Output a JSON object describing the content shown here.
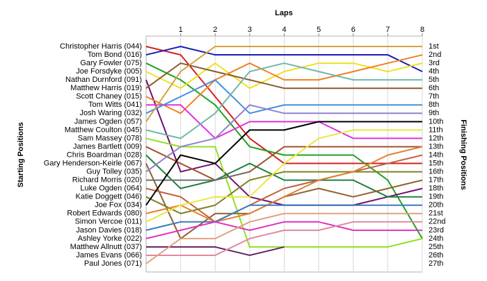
{
  "chart_data": {
    "type": "line",
    "title": "Laps",
    "y_label": "Starting Positions",
    "y2_label": "Finishing Positions",
    "x": [
      0,
      1,
      2,
      3,
      4,
      5,
      6,
      7,
      8
    ],
    "xlim": [
      0,
      8
    ],
    "xticks": [
      1,
      2,
      3,
      4,
      5,
      6,
      7,
      8
    ],
    "ylim": [
      1,
      27
    ],
    "y_inverted": true,
    "grid": true,
    "finishing_labels": [
      "1st",
      "2nd",
      "3rd",
      "4th",
      "5th",
      "6th",
      "7th",
      "8th",
      "9th",
      "10th",
      "11th",
      "12th",
      "13th",
      "14th",
      "15th",
      "16th",
      "17th",
      "18th",
      "19th",
      "20th",
      "21st",
      "22nd",
      "23rd",
      "24th",
      "25th",
      "26th",
      "27th"
    ],
    "series": [
      {
        "name": "Christopher Harris (044)",
        "color": "#d42020",
        "values": [
          1,
          2,
          7,
          12,
          15,
          15,
          15,
          15,
          15
        ]
      },
      {
        "name": "Tom Bond (016)",
        "color": "#1a1ab8",
        "values": [
          2,
          1,
          2,
          2,
          2,
          2,
          2,
          2,
          4
        ]
      },
      {
        "name": "Gary Fowler (075)",
        "color": "#20a020",
        "values": [
          3,
          5,
          8,
          13,
          14,
          14,
          14,
          17,
          24
        ]
      },
      {
        "name": "Joe Forsdyke (005)",
        "color": "#f0e020",
        "values": [
          4,
          6,
          3,
          6,
          4,
          3,
          3,
          4,
          3
        ]
      },
      {
        "name": "Nathan Durnford (091)",
        "color": "#701070",
        "values": [
          5,
          16,
          15,
          19,
          20,
          20,
          20,
          19,
          18
        ]
      },
      {
        "name": "Matthew Harris (019)",
        "color": "#8b5a2b",
        "values": [
          6,
          3,
          4,
          5,
          6,
          6,
          6,
          6,
          6
        ]
      },
      {
        "name": "Scott Chaney (015)",
        "color": "#f08020",
        "values": [
          7,
          9,
          5,
          3,
          5,
          5,
          4,
          3,
          2
        ]
      },
      {
        "name": "Tom Witts (041)",
        "color": "#e030e0",
        "values": [
          8,
          8,
          12,
          10,
          10,
          10,
          12,
          12,
          12
        ]
      },
      {
        "name": "Josh Waring (032)",
        "color": "#4090e0",
        "values": [
          9,
          7,
          5,
          9,
          8,
          8,
          8,
          8,
          8
        ]
      },
      {
        "name": "James Ogden (057)",
        "color": "#d4a040",
        "values": [
          10,
          4,
          1,
          1,
          1,
          1,
          1,
          1,
          1
        ]
      },
      {
        "name": "Matthew Coulton (045)",
        "color": "#70b8a8",
        "values": [
          11,
          12,
          9,
          4,
          3,
          4,
          5,
          5,
          5
        ]
      },
      {
        "name": "Sam Massey (078)",
        "color": "#90e020",
        "values": [
          12,
          13,
          13,
          25,
          25,
          25,
          25,
          25,
          24
        ]
      },
      {
        "name": "James Bartlett (009)",
        "color": "#a0522d",
        "values": [
          13,
          15,
          17,
          16,
          13,
          13,
          13,
          13,
          13
        ]
      },
      {
        "name": "Chris Boardman (028)",
        "color": "#208040",
        "values": [
          14,
          18,
          17,
          15,
          17,
          17,
          17,
          19,
          19
        ]
      },
      {
        "name": "Gary Henderson-Keirle (067)",
        "color": "#906030",
        "values": [
          15,
          24,
          21,
          21,
          19,
          18,
          19,
          18,
          17
        ]
      },
      {
        "name": "Guy Tolley (035)",
        "color": "#9080d0",
        "values": [
          16,
          13,
          12,
          8,
          9,
          9,
          9,
          9,
          9
        ]
      },
      {
        "name": "Richard Morris (020)",
        "color": "#707070",
        "values": [
          17,
          17,
          17,
          16,
          null,
          null,
          null,
          null,
          null
        ]
      },
      {
        "name": "Luke Ogden (064)",
        "color": "#c06040",
        "values": [
          18,
          19,
          22,
          20,
          18,
          17,
          16,
          15,
          14
        ]
      },
      {
        "name": "Katie Doggett (046)",
        "color": "#808020",
        "values": [
          19,
          21,
          20,
          17,
          16,
          16,
          16,
          16,
          16
        ]
      },
      {
        "name": "Joe Fox (034)",
        "color": "#000000",
        "values": [
          20,
          14,
          15,
          11,
          11,
          10,
          10,
          10,
          10
        ]
      },
      {
        "name": "Robert Edwards (080)",
        "color": "#e08030",
        "values": [
          21,
          20,
          22,
          21,
          19,
          17,
          16,
          14,
          13
        ]
      },
      {
        "name": "Simon Vercoe (011)",
        "color": "#e8e840",
        "values": [
          22,
          20,
          19,
          19,
          15,
          12,
          11,
          11,
          11
        ]
      },
      {
        "name": "Jason Davies (018)",
        "color": "#3a7ac0",
        "values": [
          23,
          22,
          22,
          20,
          20,
          20,
          20,
          20,
          20
        ]
      },
      {
        "name": "Ashley Yorke (022)",
        "color": "#e030c0",
        "values": [
          24,
          23,
          22,
          23,
          22,
          22,
          23,
          23,
          23
        ]
      },
      {
        "name": "Matthew Allnutt (037)",
        "color": "#602060",
        "values": [
          25,
          25,
          25,
          26,
          25,
          null,
          null,
          null,
          null
        ]
      },
      {
        "name": "James Evans (066)",
        "color": "#e088a0",
        "values": [
          26,
          26,
          26,
          24,
          23,
          23,
          22,
          22,
          22
        ]
      },
      {
        "name": "Paul Jones (071)",
        "color": "#e0a080",
        "values": [
          27,
          24,
          24,
          22,
          21,
          21,
          21,
          21,
          21
        ]
      }
    ]
  }
}
